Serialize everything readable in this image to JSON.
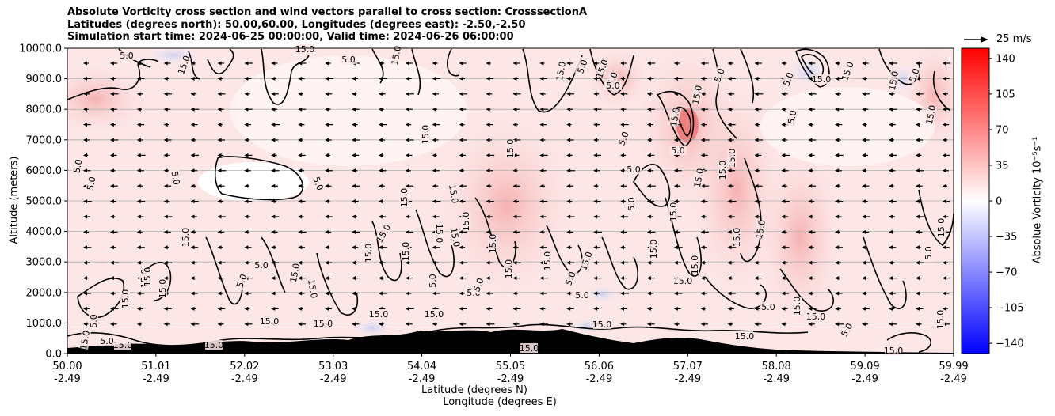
{
  "title_lines": [
    "Absolute Vorticity cross section and wind vectors parallel to cross section: CrosssectionA",
    "Latitudes (degrees north): 50.00,60.00, Longitudes (degrees east): -2.50,-2.50",
    "Simulation start time: 2024-06-25 00:00:00, Valid time: 2024-06-26 06:00:00"
  ],
  "chart_data": {
    "type": "heatmap",
    "xlabel_line1": "Latitude (degrees N)",
    "xlabel_line2": "Longitude (degrees E)",
    "ylabel": "Altitude (meters)",
    "ylim": [
      0,
      10000
    ],
    "yticks": [
      "0.0",
      "1000.0",
      "2000.0",
      "3000.0",
      "4000.0",
      "5000.0",
      "6000.0",
      "7000.0",
      "8000.0",
      "9000.0",
      "10000.0"
    ],
    "xticks": [
      {
        "lat": "50.00",
        "lon": "-2.49"
      },
      {
        "lat": "51.01",
        "lon": "-2.49"
      },
      {
        "lat": "52.02",
        "lon": "-2.49"
      },
      {
        "lat": "53.03",
        "lon": "-2.49"
      },
      {
        "lat": "54.04",
        "lon": "-2.49"
      },
      {
        "lat": "55.05",
        "lon": "-2.49"
      },
      {
        "lat": "56.06",
        "lon": "-2.49"
      },
      {
        "lat": "57.07",
        "lon": "-2.49"
      },
      {
        "lat": "58.08",
        "lon": "-2.49"
      },
      {
        "lat": "59.09",
        "lon": "-2.49"
      },
      {
        "lat": "59.99",
        "lon": "-2.49"
      }
    ],
    "horizontal_grid": true,
    "colorbar": {
      "label": "Absolue Vorticity 10⁻⁵s⁻¹",
      "ticks": [
        "140",
        "105",
        "70",
        "35",
        "0",
        "−35",
        "−70",
        "−105",
        "−140"
      ],
      "range": [
        -150,
        150
      ],
      "cmap": "bwr",
      "low_color": "#0000ff",
      "mid_color": "#ffffff",
      "high_color": "#ff0000"
    },
    "contour_labels": [
      "5.0",
      "15.0"
    ],
    "wind_key": {
      "label": "25 m/s",
      "value": 25
    },
    "wind_direction": "toward decreasing latitude (left) at most levels"
  }
}
